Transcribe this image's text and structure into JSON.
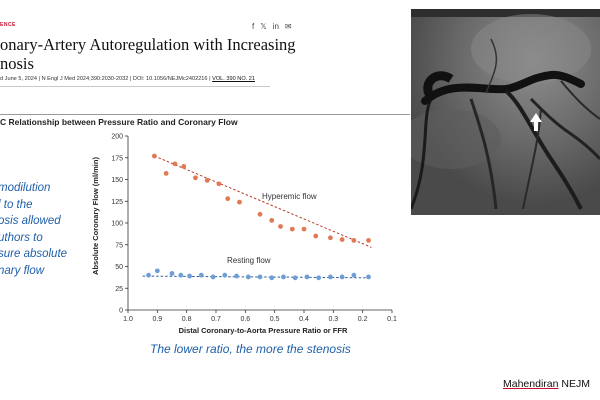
{
  "article": {
    "section_label": "ENCE",
    "share_icons": [
      "facebook-icon",
      "x-icon",
      "linkedin-icon",
      "mail-icon"
    ],
    "share_glyphs": [
      "f",
      "𝕏",
      "in",
      "✉"
    ],
    "title_line1": "onary-Artery Autoregulation with Increasing",
    "title_line2": "nosis",
    "citation_main": "d June 5, 2024 | N Engl J Med 2024;390:2030-2032 | DOI: 10.1056/NEJMc2402216 | ",
    "citation_vol": "VOL. 390 NO. 21"
  },
  "panel": {
    "title": "C  Relationship between Pressure Ratio and Coronary Flow"
  },
  "notes": {
    "left_lines": [
      "modilution",
      "l to the",
      "osis allowed",
      "uthors to",
      "sure absolute",
      "nary flow"
    ],
    "caption": "The lower ratio, the more the stenosis",
    "credit_name": "Mahendiran",
    "credit_rest": " NEJM"
  },
  "colors": {
    "hyperemic": "#e07a55",
    "resting": "#6f9ed6",
    "trend_red": "#b83a22",
    "trend_blue": "#2f5d9b",
    "annotation_blue": "#1f5fa8"
  },
  "chart_data": {
    "type": "scatter",
    "xlabel": "Distal Coronary-to-Aorta Pressure Ratio or FFR",
    "ylabel": "Absolute Coronary Flow (ml/min)",
    "xlim": [
      1.0,
      0.1
    ],
    "ylim": [
      0,
      200
    ],
    "x_ticks": [
      1.0,
      0.9,
      0.8,
      0.7,
      0.6,
      0.5,
      0.4,
      0.3,
      0.2,
      0.1
    ],
    "x_tick_labels": [
      "1.0",
      "0.9",
      "0.8",
      "0.7",
      "0.6",
      "0.5",
      "0.4",
      "0.3",
      "0.2",
      "0.1"
    ],
    "y_ticks": [
      0,
      25,
      50,
      75,
      100,
      125,
      150,
      175,
      200
    ],
    "y_tick_labels": [
      "0",
      "25",
      "50",
      "75",
      "100",
      "125",
      "150",
      "175",
      "200"
    ],
    "grid": false,
    "series": [
      {
        "name": "Hyperemic flow",
        "x": [
          0.91,
          0.87,
          0.84,
          0.81,
          0.77,
          0.73,
          0.69,
          0.66,
          0.62,
          0.55,
          0.51,
          0.48,
          0.44,
          0.4,
          0.36,
          0.31,
          0.27,
          0.23,
          0.18
        ],
        "y": [
          177,
          157,
          168,
          165,
          152,
          149,
          145,
          128,
          124,
          110,
          103,
          96,
          93,
          93,
          85,
          83,
          81,
          80,
          80
        ],
        "trend": [
          [
            0.91,
            177
          ],
          [
            0.17,
            72
          ]
        ]
      },
      {
        "name": "Resting flow",
        "x": [
          0.93,
          0.9,
          0.85,
          0.82,
          0.79,
          0.75,
          0.71,
          0.67,
          0.63,
          0.59,
          0.55,
          0.51,
          0.47,
          0.43,
          0.39,
          0.35,
          0.31,
          0.27,
          0.23,
          0.18
        ],
        "y": [
          40,
          45,
          42,
          40,
          39,
          40,
          38,
          40,
          39,
          38,
          38,
          37,
          38,
          37,
          38,
          37,
          38,
          38,
          40,
          38
        ],
        "trend": [
          [
            0.95,
            39
          ],
          [
            0.17,
            37
          ]
        ]
      }
    ]
  }
}
